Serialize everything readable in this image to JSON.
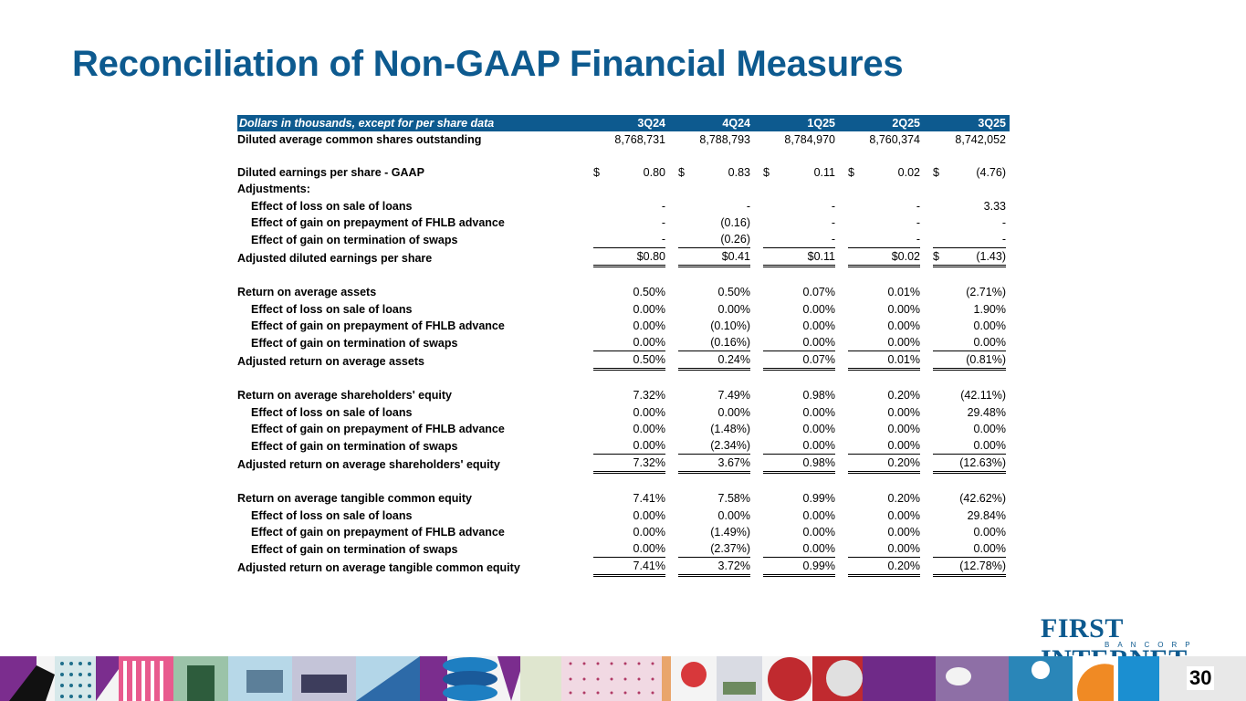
{
  "title": "Reconciliation of Non-GAAP Financial Measures",
  "table": {
    "header_label": "Dollars in thousands, except for per share data",
    "columns": [
      "3Q24",
      "4Q24",
      "1Q25",
      "2Q25",
      "3Q25"
    ],
    "rows": [
      {
        "label": "Diluted average common shares outstanding",
        "indent": false,
        "values": [
          "8,768,731",
          "8,788,793",
          "8,784,970",
          "8,760,374",
          "8,742,052"
        ],
        "dollar": [
          false,
          false,
          false,
          false,
          false
        ],
        "style": ""
      },
      {
        "spacer": true
      },
      {
        "label": "Diluted earnings per share - GAAP",
        "indent": false,
        "values": [
          "0.80",
          "0.83",
          "0.11",
          "0.02",
          "(4.76)"
        ],
        "dollar": [
          true,
          true,
          true,
          true,
          true
        ],
        "style": ""
      },
      {
        "label": "Adjustments:",
        "indent": false,
        "values": [
          "",
          "",
          "",
          "",
          ""
        ],
        "dollar": [
          false,
          false,
          false,
          false,
          false
        ],
        "style": ""
      },
      {
        "label": "Effect of loss on sale of loans",
        "indent": true,
        "values": [
          "-",
          "-",
          "-",
          "-",
          "3.33"
        ],
        "dollar": [
          false,
          false,
          false,
          false,
          false
        ],
        "style": ""
      },
      {
        "label": "Effect of gain on prepayment of FHLB advance",
        "indent": true,
        "values": [
          "-",
          "(0.16)",
          "-",
          "-",
          "-"
        ],
        "dollar": [
          false,
          false,
          false,
          false,
          false
        ],
        "style": ""
      },
      {
        "label": "Effect of gain on termination of swaps",
        "indent": true,
        "values": [
          "-",
          "(0.26)",
          "-",
          "-",
          "-"
        ],
        "dollar": [
          false,
          false,
          false,
          false,
          false
        ],
        "style": "underline"
      },
      {
        "label": "Adjusted diluted earnings per share",
        "indent": false,
        "values": [
          "$0.80",
          "$0.41",
          "$0.11",
          "$0.02",
          "(1.43)"
        ],
        "dollar": [
          false,
          false,
          false,
          false,
          true
        ],
        "style": "total"
      },
      {
        "spacer": true
      },
      {
        "label": "Return on average assets",
        "indent": false,
        "values": [
          "0.50%",
          "0.50%",
          "0.07%",
          "0.01%",
          "(2.71%)"
        ],
        "dollar": [
          false,
          false,
          false,
          false,
          false
        ],
        "style": ""
      },
      {
        "label": "Effect of loss on sale of loans",
        "indent": true,
        "values": [
          "0.00%",
          "0.00%",
          "0.00%",
          "0.00%",
          "1.90%"
        ],
        "dollar": [
          false,
          false,
          false,
          false,
          false
        ],
        "style": ""
      },
      {
        "label": "Effect of gain on prepayment of FHLB advance",
        "indent": true,
        "values": [
          "0.00%",
          "(0.10%)",
          "0.00%",
          "0.00%",
          "0.00%"
        ],
        "dollar": [
          false,
          false,
          false,
          false,
          false
        ],
        "style": ""
      },
      {
        "label": "Effect of gain on termination of swaps",
        "indent": true,
        "values": [
          "0.00%",
          "(0.16%)",
          "0.00%",
          "0.00%",
          "0.00%"
        ],
        "dollar": [
          false,
          false,
          false,
          false,
          false
        ],
        "style": "underline"
      },
      {
        "label": "Adjusted return on average assets",
        "indent": false,
        "values": [
          "0.50%",
          "0.24%",
          "0.07%",
          "0.01%",
          "(0.81%)"
        ],
        "dollar": [
          false,
          false,
          false,
          false,
          false
        ],
        "style": "total"
      },
      {
        "spacer": true
      },
      {
        "label": "Return on average shareholders' equity",
        "indent": false,
        "values": [
          "7.32%",
          "7.49%",
          "0.98%",
          "0.20%",
          "(42.11%)"
        ],
        "dollar": [
          false,
          false,
          false,
          false,
          false
        ],
        "style": ""
      },
      {
        "label": "Effect of loss on sale of loans",
        "indent": true,
        "values": [
          "0.00%",
          "0.00%",
          "0.00%",
          "0.00%",
          "29.48%"
        ],
        "dollar": [
          false,
          false,
          false,
          false,
          false
        ],
        "style": ""
      },
      {
        "label": "Effect of gain on prepayment of FHLB advance",
        "indent": true,
        "values": [
          "0.00%",
          "(1.48%)",
          "0.00%",
          "0.00%",
          "0.00%"
        ],
        "dollar": [
          false,
          false,
          false,
          false,
          false
        ],
        "style": ""
      },
      {
        "label": "Effect of gain on termination of swaps",
        "indent": true,
        "values": [
          "0.00%",
          "(2.34%)",
          "0.00%",
          "0.00%",
          "0.00%"
        ],
        "dollar": [
          false,
          false,
          false,
          false,
          false
        ],
        "style": "underline"
      },
      {
        "label": "Adjusted return on average shareholders' equity",
        "indent": false,
        "values": [
          "7.32%",
          "3.67%",
          "0.98%",
          "0.20%",
          "(12.63%)"
        ],
        "dollar": [
          false,
          false,
          false,
          false,
          false
        ],
        "style": "total"
      },
      {
        "spacer": true
      },
      {
        "label": "Return on average tangible common equity",
        "indent": false,
        "values": [
          "7.41%",
          "7.58%",
          "0.99%",
          "0.20%",
          "(42.62%)"
        ],
        "dollar": [
          false,
          false,
          false,
          false,
          false
        ],
        "style": ""
      },
      {
        "label": "Effect of loss on sale of loans",
        "indent": true,
        "values": [
          "0.00%",
          "0.00%",
          "0.00%",
          "0.00%",
          "29.84%"
        ],
        "dollar": [
          false,
          false,
          false,
          false,
          false
        ],
        "style": ""
      },
      {
        "label": "Effect of gain on prepayment of FHLB advance",
        "indent": true,
        "values": [
          "0.00%",
          "(1.49%)",
          "0.00%",
          "0.00%",
          "0.00%"
        ],
        "dollar": [
          false,
          false,
          false,
          false,
          false
        ],
        "style": ""
      },
      {
        "label": "Effect of gain on termination of swaps",
        "indent": true,
        "values": [
          "0.00%",
          "(2.37%)",
          "0.00%",
          "0.00%",
          "0.00%"
        ],
        "dollar": [
          false,
          false,
          false,
          false,
          false
        ],
        "style": "underline"
      },
      {
        "label": "Adjusted return on average tangible common equity",
        "indent": false,
        "values": [
          "7.41%",
          "3.72%",
          "0.99%",
          "0.20%",
          "(12.78%)"
        ],
        "dollar": [
          false,
          false,
          false,
          false,
          false
        ],
        "style": "total"
      }
    ],
    "dollar_symbol": "$"
  },
  "logo": {
    "main_first_initial": "F",
    "main_rest": "IRST INTERNET",
    "sub": "BANCORP"
  },
  "page_number": "30",
  "colors": {
    "brand_blue": "#0d5a8f"
  }
}
